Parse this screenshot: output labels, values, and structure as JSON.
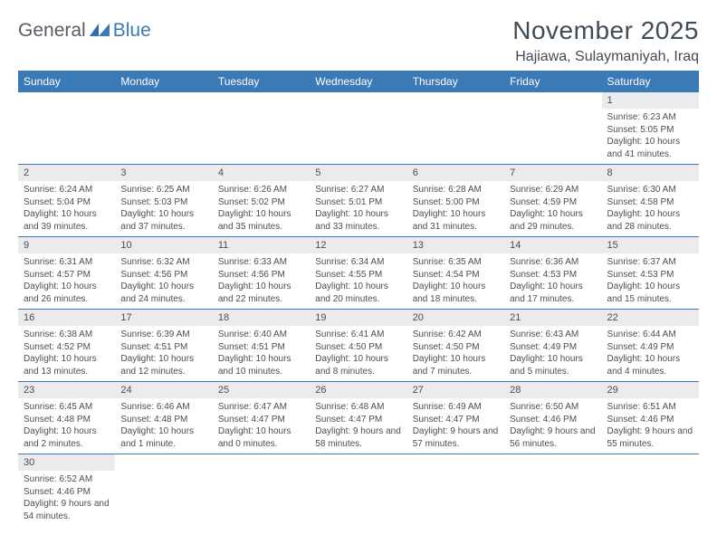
{
  "logo": {
    "part1": "General",
    "part2": "Blue"
  },
  "title": "November 2025",
  "location": "Hajiawa, Sulaymaniyah, Iraq",
  "colors": {
    "header_bg": "#3b79b7",
    "header_text": "#ffffff",
    "daynum_bg": "#e9ebec",
    "text": "#4a4f55",
    "title_text": "#414c56",
    "rule": "#3b79b7",
    "page_bg": "#ffffff"
  },
  "typography": {
    "title_size_pt": 21,
    "location_size_pt": 12,
    "dayhead_size_pt": 9,
    "daynum_size_pt": 8,
    "body_size_pt": 7.5
  },
  "day_headers": [
    "Sunday",
    "Monday",
    "Tuesday",
    "Wednesday",
    "Thursday",
    "Friday",
    "Saturday"
  ],
  "weeks": [
    [
      null,
      null,
      null,
      null,
      null,
      null,
      {
        "n": "1",
        "sunrise": "Sunrise: 6:23 AM",
        "sunset": "Sunset: 5:05 PM",
        "daylight": "Daylight: 10 hours and 41 minutes."
      }
    ],
    [
      {
        "n": "2",
        "sunrise": "Sunrise: 6:24 AM",
        "sunset": "Sunset: 5:04 PM",
        "daylight": "Daylight: 10 hours and 39 minutes."
      },
      {
        "n": "3",
        "sunrise": "Sunrise: 6:25 AM",
        "sunset": "Sunset: 5:03 PM",
        "daylight": "Daylight: 10 hours and 37 minutes."
      },
      {
        "n": "4",
        "sunrise": "Sunrise: 6:26 AM",
        "sunset": "Sunset: 5:02 PM",
        "daylight": "Daylight: 10 hours and 35 minutes."
      },
      {
        "n": "5",
        "sunrise": "Sunrise: 6:27 AM",
        "sunset": "Sunset: 5:01 PM",
        "daylight": "Daylight: 10 hours and 33 minutes."
      },
      {
        "n": "6",
        "sunrise": "Sunrise: 6:28 AM",
        "sunset": "Sunset: 5:00 PM",
        "daylight": "Daylight: 10 hours and 31 minutes."
      },
      {
        "n": "7",
        "sunrise": "Sunrise: 6:29 AM",
        "sunset": "Sunset: 4:59 PM",
        "daylight": "Daylight: 10 hours and 29 minutes."
      },
      {
        "n": "8",
        "sunrise": "Sunrise: 6:30 AM",
        "sunset": "Sunset: 4:58 PM",
        "daylight": "Daylight: 10 hours and 28 minutes."
      }
    ],
    [
      {
        "n": "9",
        "sunrise": "Sunrise: 6:31 AM",
        "sunset": "Sunset: 4:57 PM",
        "daylight": "Daylight: 10 hours and 26 minutes."
      },
      {
        "n": "10",
        "sunrise": "Sunrise: 6:32 AM",
        "sunset": "Sunset: 4:56 PM",
        "daylight": "Daylight: 10 hours and 24 minutes."
      },
      {
        "n": "11",
        "sunrise": "Sunrise: 6:33 AM",
        "sunset": "Sunset: 4:56 PM",
        "daylight": "Daylight: 10 hours and 22 minutes."
      },
      {
        "n": "12",
        "sunrise": "Sunrise: 6:34 AM",
        "sunset": "Sunset: 4:55 PM",
        "daylight": "Daylight: 10 hours and 20 minutes."
      },
      {
        "n": "13",
        "sunrise": "Sunrise: 6:35 AM",
        "sunset": "Sunset: 4:54 PM",
        "daylight": "Daylight: 10 hours and 18 minutes."
      },
      {
        "n": "14",
        "sunrise": "Sunrise: 6:36 AM",
        "sunset": "Sunset: 4:53 PM",
        "daylight": "Daylight: 10 hours and 17 minutes."
      },
      {
        "n": "15",
        "sunrise": "Sunrise: 6:37 AM",
        "sunset": "Sunset: 4:53 PM",
        "daylight": "Daylight: 10 hours and 15 minutes."
      }
    ],
    [
      {
        "n": "16",
        "sunrise": "Sunrise: 6:38 AM",
        "sunset": "Sunset: 4:52 PM",
        "daylight": "Daylight: 10 hours and 13 minutes."
      },
      {
        "n": "17",
        "sunrise": "Sunrise: 6:39 AM",
        "sunset": "Sunset: 4:51 PM",
        "daylight": "Daylight: 10 hours and 12 minutes."
      },
      {
        "n": "18",
        "sunrise": "Sunrise: 6:40 AM",
        "sunset": "Sunset: 4:51 PM",
        "daylight": "Daylight: 10 hours and 10 minutes."
      },
      {
        "n": "19",
        "sunrise": "Sunrise: 6:41 AM",
        "sunset": "Sunset: 4:50 PM",
        "daylight": "Daylight: 10 hours and 8 minutes."
      },
      {
        "n": "20",
        "sunrise": "Sunrise: 6:42 AM",
        "sunset": "Sunset: 4:50 PM",
        "daylight": "Daylight: 10 hours and 7 minutes."
      },
      {
        "n": "21",
        "sunrise": "Sunrise: 6:43 AM",
        "sunset": "Sunset: 4:49 PM",
        "daylight": "Daylight: 10 hours and 5 minutes."
      },
      {
        "n": "22",
        "sunrise": "Sunrise: 6:44 AM",
        "sunset": "Sunset: 4:49 PM",
        "daylight": "Daylight: 10 hours and 4 minutes."
      }
    ],
    [
      {
        "n": "23",
        "sunrise": "Sunrise: 6:45 AM",
        "sunset": "Sunset: 4:48 PM",
        "daylight": "Daylight: 10 hours and 2 minutes."
      },
      {
        "n": "24",
        "sunrise": "Sunrise: 6:46 AM",
        "sunset": "Sunset: 4:48 PM",
        "daylight": "Daylight: 10 hours and 1 minute."
      },
      {
        "n": "25",
        "sunrise": "Sunrise: 6:47 AM",
        "sunset": "Sunset: 4:47 PM",
        "daylight": "Daylight: 10 hours and 0 minutes."
      },
      {
        "n": "26",
        "sunrise": "Sunrise: 6:48 AM",
        "sunset": "Sunset: 4:47 PM",
        "daylight": "Daylight: 9 hours and 58 minutes."
      },
      {
        "n": "27",
        "sunrise": "Sunrise: 6:49 AM",
        "sunset": "Sunset: 4:47 PM",
        "daylight": "Daylight: 9 hours and 57 minutes."
      },
      {
        "n": "28",
        "sunrise": "Sunrise: 6:50 AM",
        "sunset": "Sunset: 4:46 PM",
        "daylight": "Daylight: 9 hours and 56 minutes."
      },
      {
        "n": "29",
        "sunrise": "Sunrise: 6:51 AM",
        "sunset": "Sunset: 4:46 PM",
        "daylight": "Daylight: 9 hours and 55 minutes."
      }
    ],
    [
      {
        "n": "30",
        "sunrise": "Sunrise: 6:52 AM",
        "sunset": "Sunset: 4:46 PM",
        "daylight": "Daylight: 9 hours and 54 minutes."
      },
      null,
      null,
      null,
      null,
      null,
      null
    ]
  ]
}
